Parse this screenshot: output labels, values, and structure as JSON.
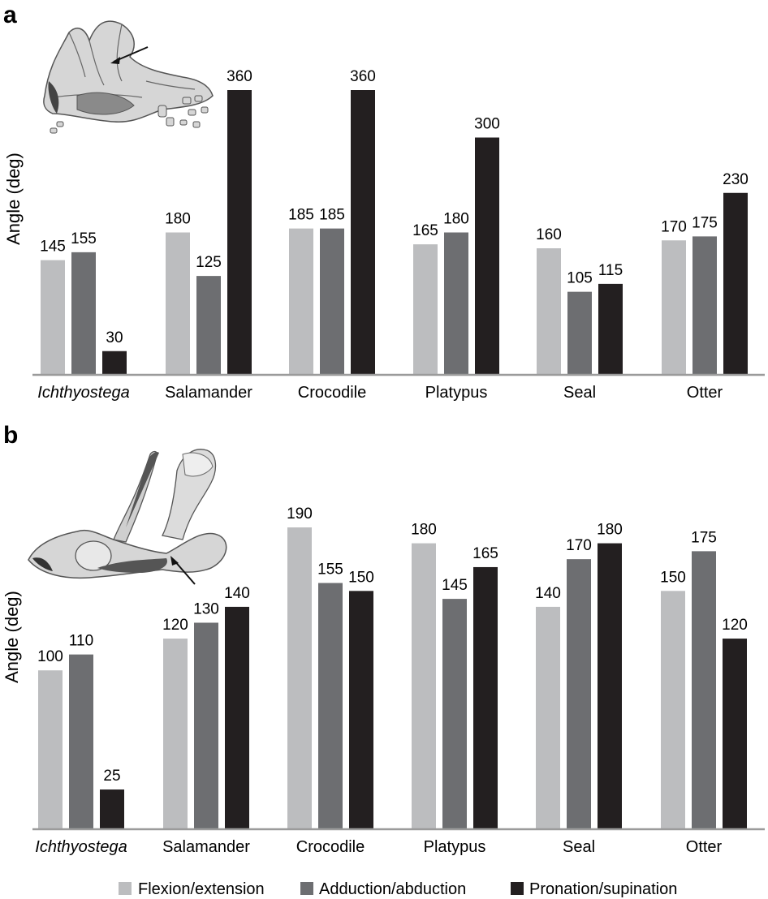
{
  "colors": {
    "flexion": "#bcbdbf",
    "adduction": "#6d6e71",
    "pronation": "#231f20",
    "axis": "#9b9b9b",
    "fossil_fill": "#d9d9d9",
    "fossil_stroke": "#555555"
  },
  "chart_data": [
    {
      "type": "bar",
      "panel": "a",
      "ylabel": "Angle (deg)",
      "ylim": [
        0,
        360
      ],
      "categories": [
        "Ichthyostega",
        "Salamander",
        "Crocodile",
        "Platypus",
        "Seal",
        "Otter"
      ],
      "italic_categories": [
        "Ichthyostega"
      ],
      "series": [
        {
          "name": "Flexion/extension",
          "color_key": "flexion",
          "values": [
            145,
            180,
            185,
            165,
            160,
            170
          ]
        },
        {
          "name": "Adduction/abduction",
          "color_key": "adduction",
          "values": [
            155,
            125,
            185,
            180,
            105,
            175
          ]
        },
        {
          "name": "Pronation/supination",
          "color_key": "pronation",
          "values": [
            30,
            360,
            360,
            300,
            115,
            230
          ]
        }
      ],
      "inset_icon": "ichthyostega-pectoral-girdle-render"
    },
    {
      "type": "bar",
      "panel": "b",
      "ylabel": "Angle (deg)",
      "ylim": [
        0,
        190
      ],
      "categories": [
        "Ichthyostega",
        "Salamander",
        "Crocodile",
        "Platypus",
        "Seal",
        "Otter"
      ],
      "italic_categories": [
        "Ichthyostega"
      ],
      "series": [
        {
          "name": "Flexion/extension",
          "color_key": "flexion",
          "values": [
            100,
            120,
            190,
            180,
            140,
            150
          ]
        },
        {
          "name": "Adduction/abduction",
          "color_key": "adduction",
          "values": [
            110,
            130,
            155,
            145,
            170,
            175
          ]
        },
        {
          "name": "Pronation/supination",
          "color_key": "pronation",
          "values": [
            25,
            140,
            150,
            165,
            180,
            120
          ]
        }
      ],
      "inset_icon": "ichthyostega-pelvis-hindlimb-render"
    }
  ],
  "legend": {
    "placement": "bottom-center",
    "items": [
      "Flexion/extension",
      "Adduction/abduction",
      "Pronation/supination"
    ]
  }
}
